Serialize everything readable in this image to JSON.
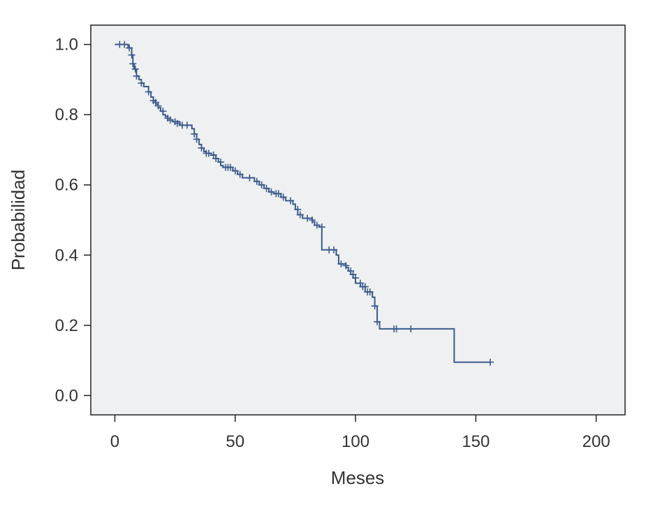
{
  "chart_data": {
    "type": "line",
    "subtype": "kaplan-meier-step",
    "xlabel": "Meses",
    "ylabel": "Probabilidad",
    "xlim": [
      -10,
      212
    ],
    "ylim": [
      -0.055,
      1.055
    ],
    "xticks": [
      0,
      50,
      100,
      150,
      200
    ],
    "xtick_labels": [
      "0",
      "50",
      "100",
      "150",
      "200"
    ],
    "yticks": [
      0.0,
      0.2,
      0.4,
      0.6,
      0.8,
      1.0
    ],
    "ytick_labels": [
      "0.0",
      "0.2",
      "0.4",
      "0.6",
      "0.8",
      "1.0"
    ],
    "grid": false,
    "series": [
      {
        "color": "#3a5a8c",
        "steps": [
          [
            0,
            1.0
          ],
          [
            5.5,
            0.99
          ],
          [
            7,
            0.97
          ],
          [
            7.5,
            0.945
          ],
          [
            8,
            0.93
          ],
          [
            9,
            0.91
          ],
          [
            10,
            0.9
          ],
          [
            11,
            0.89
          ],
          [
            12,
            0.88
          ],
          [
            14,
            0.865
          ],
          [
            15,
            0.85
          ],
          [
            16,
            0.84
          ],
          [
            17,
            0.83
          ],
          [
            18,
            0.82
          ],
          [
            19,
            0.81
          ],
          [
            20,
            0.8
          ],
          [
            21,
            0.795
          ],
          [
            22,
            0.785
          ],
          [
            24,
            0.78
          ],
          [
            27,
            0.77
          ],
          [
            32,
            0.76
          ],
          [
            33,
            0.745
          ],
          [
            34,
            0.73
          ],
          [
            35,
            0.715
          ],
          [
            36,
            0.705
          ],
          [
            37,
            0.695
          ],
          [
            38,
            0.69
          ],
          [
            40,
            0.685
          ],
          [
            42,
            0.675
          ],
          [
            43,
            0.665
          ],
          [
            44,
            0.655
          ],
          [
            45,
            0.65
          ],
          [
            49,
            0.64
          ],
          [
            51,
            0.63
          ],
          [
            53,
            0.62
          ],
          [
            58,
            0.61
          ],
          [
            60,
            0.6
          ],
          [
            62,
            0.59
          ],
          [
            64,
            0.58
          ],
          [
            66,
            0.575
          ],
          [
            69,
            0.565
          ],
          [
            71,
            0.555
          ],
          [
            74,
            0.545
          ],
          [
            75,
            0.53
          ],
          [
            76,
            0.515
          ],
          [
            78,
            0.505
          ],
          [
            82,
            0.495
          ],
          [
            83,
            0.485
          ],
          [
            85,
            0.48
          ],
          [
            86,
            0.415
          ],
          [
            92,
            0.4
          ],
          [
            93,
            0.375
          ],
          [
            96,
            0.365
          ],
          [
            97,
            0.355
          ],
          [
            98,
            0.345
          ],
          [
            99,
            0.335
          ],
          [
            100,
            0.32
          ],
          [
            102,
            0.31
          ],
          [
            104,
            0.295
          ],
          [
            107,
            0.28
          ],
          [
            108,
            0.255
          ],
          [
            109,
            0.21
          ],
          [
            110,
            0.19
          ],
          [
            141,
            0.095
          ],
          [
            156,
            0.095
          ]
        ],
        "censored": [
          [
            2,
            1.0
          ],
          [
            4,
            1.0
          ],
          [
            6,
            0.99
          ],
          [
            7,
            0.97
          ],
          [
            7.5,
            0.945
          ],
          [
            8.5,
            0.93
          ],
          [
            9,
            0.91
          ],
          [
            11,
            0.89
          ],
          [
            14,
            0.865
          ],
          [
            16,
            0.84
          ],
          [
            17,
            0.835
          ],
          [
            18,
            0.825
          ],
          [
            20,
            0.81
          ],
          [
            22,
            0.79
          ],
          [
            23,
            0.785
          ],
          [
            25,
            0.78
          ],
          [
            26,
            0.775
          ],
          [
            28,
            0.77
          ],
          [
            30,
            0.77
          ],
          [
            33,
            0.745
          ],
          [
            34,
            0.73
          ],
          [
            36,
            0.705
          ],
          [
            38,
            0.69
          ],
          [
            39,
            0.69
          ],
          [
            41,
            0.685
          ],
          [
            42,
            0.675
          ],
          [
            44,
            0.665
          ],
          [
            46,
            0.65
          ],
          [
            47,
            0.65
          ],
          [
            48,
            0.65
          ],
          [
            50,
            0.64
          ],
          [
            52,
            0.63
          ],
          [
            56,
            0.62
          ],
          [
            59,
            0.61
          ],
          [
            61,
            0.6
          ],
          [
            63,
            0.59
          ],
          [
            65,
            0.58
          ],
          [
            67,
            0.575
          ],
          [
            68,
            0.575
          ],
          [
            70,
            0.565
          ],
          [
            73,
            0.555
          ],
          [
            76,
            0.53
          ],
          [
            77,
            0.515
          ],
          [
            80,
            0.505
          ],
          [
            82,
            0.5
          ],
          [
            84,
            0.485
          ],
          [
            86,
            0.48
          ],
          [
            89,
            0.415
          ],
          [
            91,
            0.415
          ],
          [
            94,
            0.375
          ],
          [
            96,
            0.37
          ],
          [
            98,
            0.355
          ],
          [
            99,
            0.345
          ],
          [
            100,
            0.335
          ],
          [
            102,
            0.32
          ],
          [
            103,
            0.31
          ],
          [
            104,
            0.31
          ],
          [
            105,
            0.295
          ],
          [
            106,
            0.295
          ],
          [
            108,
            0.255
          ],
          [
            109,
            0.21
          ],
          [
            116,
            0.19
          ],
          [
            117,
            0.19
          ],
          [
            123,
            0.19
          ],
          [
            156,
            0.095
          ]
        ]
      }
    ]
  },
  "colors": {
    "plot_background": "#eef0f1",
    "line": "#3a5a8c",
    "axis": "#222222"
  }
}
